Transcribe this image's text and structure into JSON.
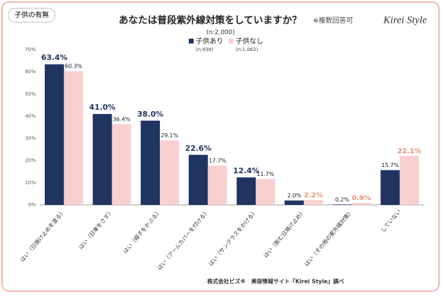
{
  "tag": "子供の有無",
  "logo": "Kirei Style",
  "footer": "株式会社ビズキ　美容情報サイト『Kirei Style』調べ",
  "chart_data": {
    "type": "bar",
    "title": "あなたは普段紫外線対策をしていますか？",
    "note": "※複数回答可",
    "subtitle": "(n:2,000)",
    "categories": [
      "はい（日焼け止めを塗る）",
      "はい（日傘をさす）",
      "はい（帽子をかぶる）",
      "はい（アームカバーを付ける）",
      "はい（サングラスをかける）",
      "はい（飲む日焼け止め）",
      "はい（その他の紫外線対策）",
      "していない"
    ],
    "series": [
      {
        "name": "子供あり",
        "sample": "(n:938)",
        "color": "#1f3461",
        "values": [
          63.4,
          41.0,
          38.0,
          22.6,
          12.4,
          2.0,
          0.2,
          15.7
        ],
        "value_labels": [
          "63.4%",
          "41.0%",
          "38.0%",
          "22.6%",
          "12.4%",
          "2.0%",
          "0.2%",
          "15.7%"
        ],
        "value_label_highlight": [
          true,
          true,
          true,
          true,
          true,
          false,
          false,
          false
        ]
      },
      {
        "name": "子供なし",
        "sample": "(n:1,062)",
        "color": "#f9cfcf",
        "values": [
          60.3,
          36.4,
          29.1,
          17.7,
          11.7,
          2.2,
          0.9,
          22.1
        ],
        "value_labels": [
          "60.3%",
          "36.4%",
          "29.1%",
          "17.7%",
          "11.7%",
          "2.2%",
          "0.9%",
          "22.1%"
        ],
        "value_label_highlight": [
          false,
          false,
          false,
          false,
          false,
          true,
          true,
          true
        ]
      }
    ],
    "highlight_colors": [
      "#1f3461",
      "#e8917a"
    ],
    "ylim": [
      0,
      70
    ],
    "yticks": [
      {
        "value": 0,
        "label": "0%"
      },
      {
        "value": 10,
        "label": "10%"
      },
      {
        "value": 20,
        "label": "20%"
      },
      {
        "value": 30,
        "label": "30%"
      },
      {
        "value": 40,
        "label": "40%"
      },
      {
        "value": 50,
        "label": "50%"
      },
      {
        "value": 60,
        "label": "60%"
      },
      {
        "value": 70,
        "label": "70%"
      }
    ],
    "grid": false
  }
}
